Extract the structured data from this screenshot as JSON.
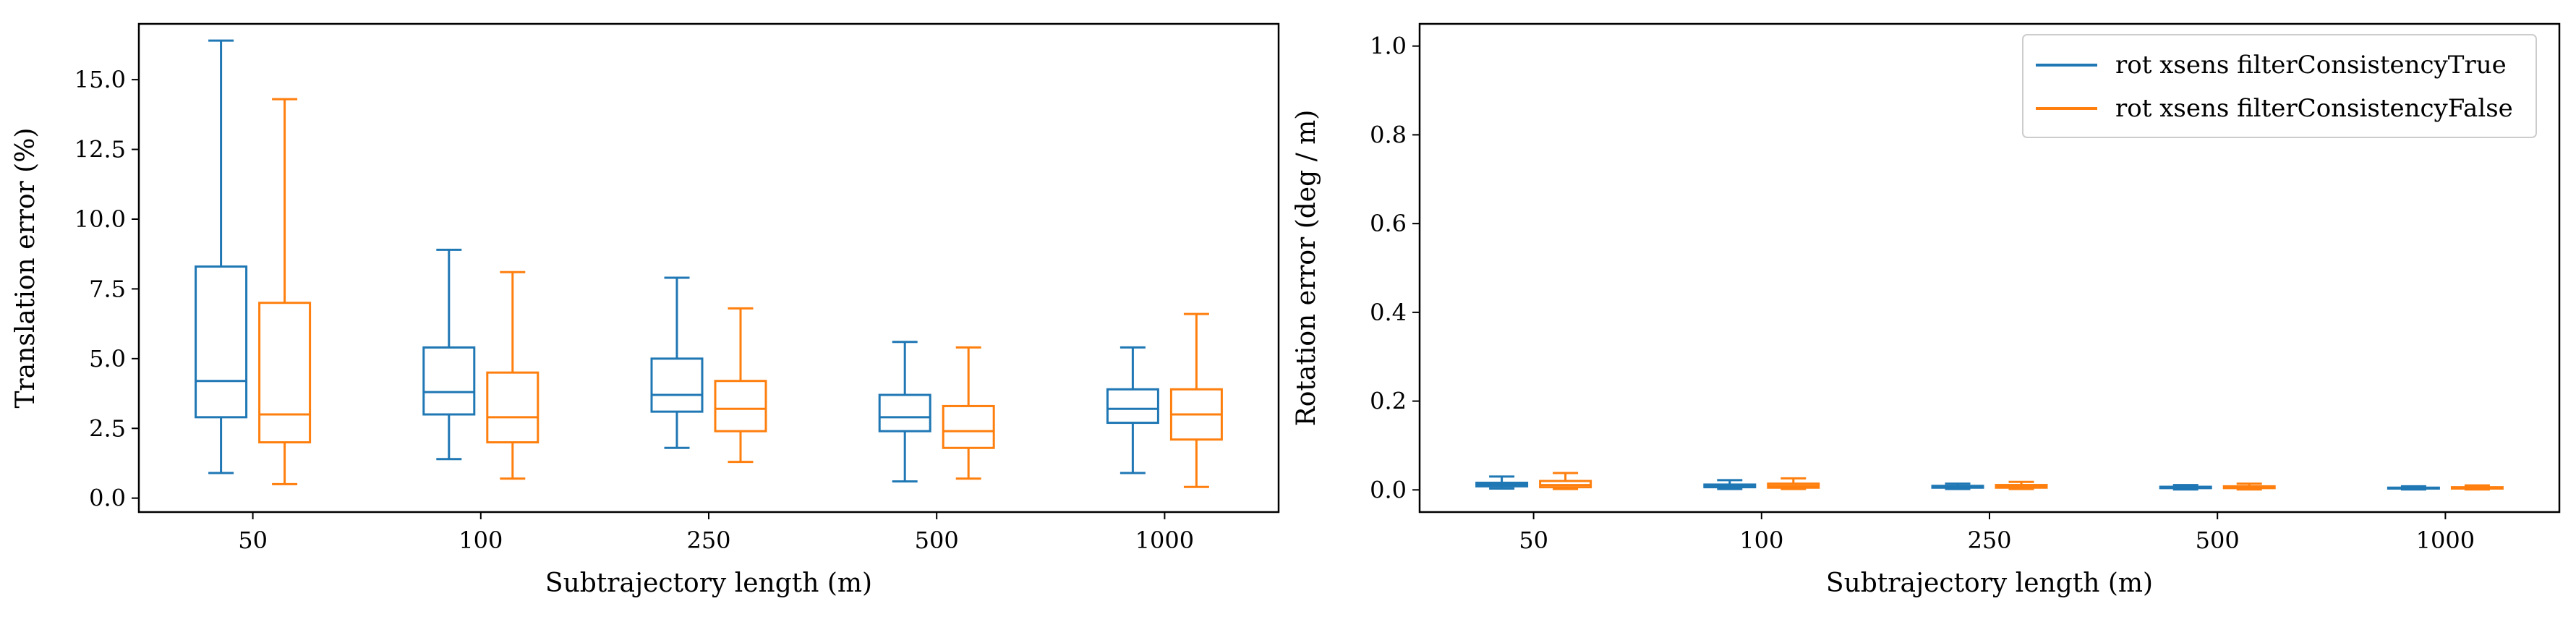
{
  "chart_data": [
    {
      "type": "box",
      "xlabel": "Subtrajectory length (m)",
      "ylabel": "Translation error (%)",
      "categories": [
        "50",
        "100",
        "250",
        "500",
        "1000"
      ],
      "ylim": [
        -0.5,
        17.0
      ],
      "yticks": [
        0.0,
        2.5,
        5.0,
        7.5,
        10.0,
        12.5,
        15.0
      ],
      "ytick_labels": [
        "0.0",
        "2.5",
        "5.0",
        "7.5",
        "10.0",
        "12.5",
        "15.0"
      ],
      "grid": false,
      "series": [
        {
          "name": "rot xsens filterConsistencyTrue",
          "color": "#1f77b4",
          "boxes": [
            {
              "min": 0.9,
              "q1": 2.9,
              "median": 4.2,
              "q3": 8.3,
              "max": 16.4
            },
            {
              "min": 1.4,
              "q1": 3.0,
              "median": 3.8,
              "q3": 5.4,
              "max": 8.9
            },
            {
              "min": 1.8,
              "q1": 3.1,
              "median": 3.7,
              "q3": 5.0,
              "max": 7.9
            },
            {
              "min": 0.6,
              "q1": 2.4,
              "median": 2.9,
              "q3": 3.7,
              "max": 5.6
            },
            {
              "min": 0.9,
              "q1": 2.7,
              "median": 3.2,
              "q3": 3.9,
              "max": 5.4
            }
          ]
        },
        {
          "name": "rot xsens filterConsistencyFalse",
          "color": "#ff7f0e",
          "boxes": [
            {
              "min": 0.5,
              "q1": 2.0,
              "median": 3.0,
              "q3": 7.0,
              "max": 14.3
            },
            {
              "min": 0.7,
              "q1": 2.0,
              "median": 2.9,
              "q3": 4.5,
              "max": 8.1
            },
            {
              "min": 1.3,
              "q1": 2.4,
              "median": 3.2,
              "q3": 4.2,
              "max": 6.8
            },
            {
              "min": 0.7,
              "q1": 1.8,
              "median": 2.4,
              "q3": 3.3,
              "max": 5.4
            },
            {
              "min": 0.4,
              "q1": 2.1,
              "median": 3.0,
              "q3": 3.9,
              "max": 6.6
            }
          ]
        }
      ]
    },
    {
      "type": "box",
      "xlabel": "Subtrajectory length (m)",
      "ylabel": "Rotation error (deg / m)",
      "categories": [
        "50",
        "100",
        "250",
        "500",
        "1000"
      ],
      "ylim": [
        -0.05,
        1.05
      ],
      "yticks": [
        0.0,
        0.2,
        0.4,
        0.6,
        0.8,
        1.0
      ],
      "ytick_labels": [
        "0.0",
        "0.2",
        "0.4",
        "0.6",
        "0.8",
        "1.0"
      ],
      "grid": false,
      "legend": "top-right",
      "series": [
        {
          "name": "rot xsens filterConsistencyTrue",
          "color": "#1f77b4",
          "boxes": [
            {
              "min": 0.003,
              "q1": 0.008,
              "median": 0.012,
              "q3": 0.016,
              "max": 0.03
            },
            {
              "min": 0.002,
              "q1": 0.006,
              "median": 0.009,
              "q3": 0.012,
              "max": 0.022
            },
            {
              "min": 0.002,
              "q1": 0.005,
              "median": 0.007,
              "q3": 0.009,
              "max": 0.014
            },
            {
              "min": 0.001,
              "q1": 0.004,
              "median": 0.005,
              "q3": 0.007,
              "max": 0.011
            },
            {
              "min": 0.001,
              "q1": 0.003,
              "median": 0.004,
              "q3": 0.005,
              "max": 0.008
            }
          ]
        },
        {
          "name": "rot xsens filterConsistencyFalse",
          "color": "#ff7f0e",
          "boxes": [
            {
              "min": 0.002,
              "q1": 0.006,
              "median": 0.011,
              "q3": 0.02,
              "max": 0.038
            },
            {
              "min": 0.002,
              "q1": 0.005,
              "median": 0.009,
              "q3": 0.014,
              "max": 0.026
            },
            {
              "min": 0.002,
              "q1": 0.005,
              "median": 0.008,
              "q3": 0.011,
              "max": 0.018
            },
            {
              "min": 0.001,
              "q1": 0.004,
              "median": 0.006,
              "q3": 0.008,
              "max": 0.014
            },
            {
              "min": 0.001,
              "q1": 0.003,
              "median": 0.005,
              "q3": 0.006,
              "max": 0.01
            }
          ]
        }
      ]
    }
  ]
}
